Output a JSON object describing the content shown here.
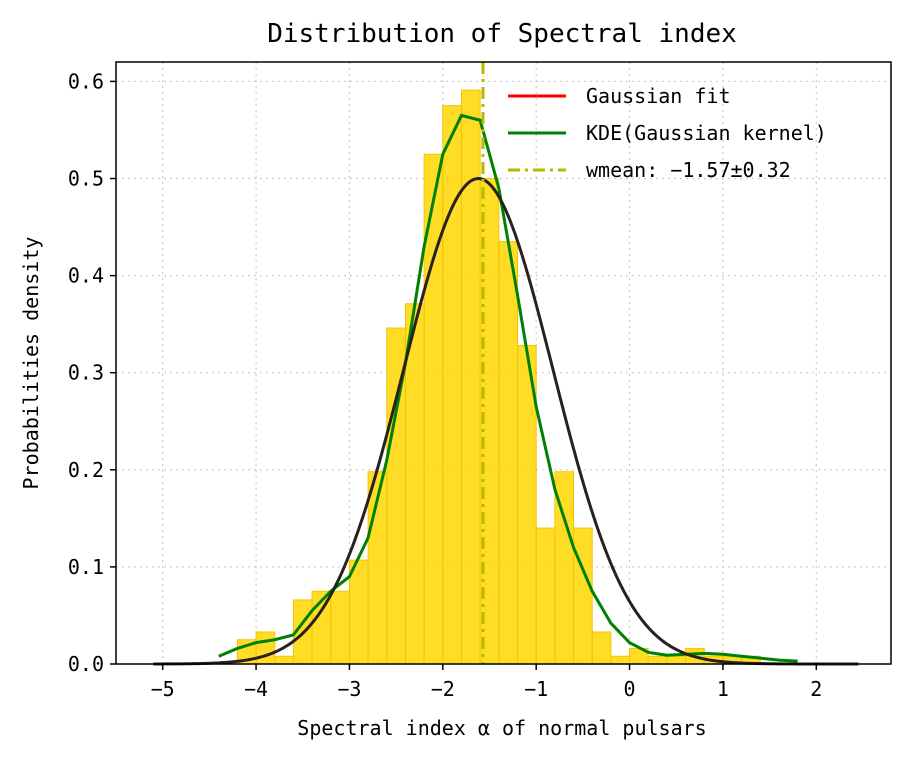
{
  "chart_data": {
    "type": "histogram",
    "title": "Distribution of Spectral index",
    "xlabel": "Spectral index α of normal pulsars",
    "ylabel": "Probabilities density",
    "xlim": [
      -5.5,
      2.8
    ],
    "ylim": [
      0.0,
      0.62
    ],
    "xticks": [
      -5,
      -4,
      -3,
      -2,
      -1,
      0,
      1,
      2
    ],
    "xtick_labels": [
      "−5",
      "−4",
      "−3",
      "−2",
      "−1",
      "0",
      "1",
      "2"
    ],
    "yticks": [
      0.0,
      0.1,
      0.2,
      0.3,
      0.4,
      0.5,
      0.6
    ],
    "ytick_labels": [
      "0.0",
      "0.1",
      "0.2",
      "0.3",
      "0.4",
      "0.5",
      "0.6"
    ],
    "grid": true,
    "legend_position": "top-right",
    "histogram": {
      "color": "#FFD700",
      "bin_width": 0.2,
      "bins": [
        {
          "start": -4.2,
          "value": 0.025
        },
        {
          "start": -4.0,
          "value": 0.033
        },
        {
          "start": -3.8,
          "value": 0.008
        },
        {
          "start": -3.6,
          "value": 0.066
        },
        {
          "start": -3.4,
          "value": 0.075
        },
        {
          "start": -3.2,
          "value": 0.075
        },
        {
          "start": -3.0,
          "value": 0.107
        },
        {
          "start": -2.8,
          "value": 0.198
        },
        {
          "start": -2.6,
          "value": 0.346
        },
        {
          "start": -2.4,
          "value": 0.371
        },
        {
          "start": -2.2,
          "value": 0.525
        },
        {
          "start": -2.0,
          "value": 0.575
        },
        {
          "start": -1.8,
          "value": 0.591
        },
        {
          "start": -1.6,
          "value": 0.5
        },
        {
          "start": -1.4,
          "value": 0.435
        },
        {
          "start": -1.2,
          "value": 0.328
        },
        {
          "start": -1.0,
          "value": 0.14
        },
        {
          "start": -0.8,
          "value": 0.198
        },
        {
          "start": -0.6,
          "value": 0.14
        },
        {
          "start": -0.4,
          "value": 0.033
        },
        {
          "start": -0.2,
          "value": 0.008
        },
        {
          "start": 0.0,
          "value": 0.016
        },
        {
          "start": 0.2,
          "value": 0.008
        },
        {
          "start": 0.4,
          "value": 0.008
        },
        {
          "start": 0.6,
          "value": 0.016
        },
        {
          "start": 0.8,
          "value": 0.008
        },
        {
          "start": 1.0,
          "value": 0.008
        },
        {
          "start": 1.2,
          "value": 0.008
        }
      ]
    },
    "series": [
      {
        "name": "Gaussian fit",
        "type": "gaussian",
        "mean": -1.62,
        "sigma": 0.8,
        "peak": 0.5,
        "x_range": [
          -5.1,
          2.45
        ],
        "legend_color": "#ff0000",
        "line_color": "#2a2020"
      },
      {
        "name": "KDE(Gaussian kernel)",
        "type": "line",
        "color": "#008000",
        "x": [
          -4.4,
          -4.2,
          -4.0,
          -3.8,
          -3.6,
          -3.4,
          -3.2,
          -3.0,
          -2.8,
          -2.6,
          -2.4,
          -2.2,
          -2.0,
          -1.8,
          -1.6,
          -1.4,
          -1.2,
          -1.0,
          -0.8,
          -0.6,
          -0.4,
          -0.2,
          0.0,
          0.2,
          0.4,
          0.6,
          0.8,
          1.0,
          1.2,
          1.4,
          1.6,
          1.8
        ],
        "y": [
          0.008,
          0.016,
          0.022,
          0.025,
          0.03,
          0.055,
          0.075,
          0.09,
          0.13,
          0.21,
          0.31,
          0.43,
          0.525,
          0.565,
          0.56,
          0.49,
          0.38,
          0.265,
          0.18,
          0.12,
          0.075,
          0.042,
          0.022,
          0.012,
          0.009,
          0.01,
          0.011,
          0.01,
          0.008,
          0.006,
          0.004,
          0.003
        ]
      },
      {
        "name": "wmean: −1.57±0.32",
        "type": "vline",
        "x": -1.57,
        "color": "#b8b800",
        "linestyle": "dashdot"
      }
    ]
  }
}
